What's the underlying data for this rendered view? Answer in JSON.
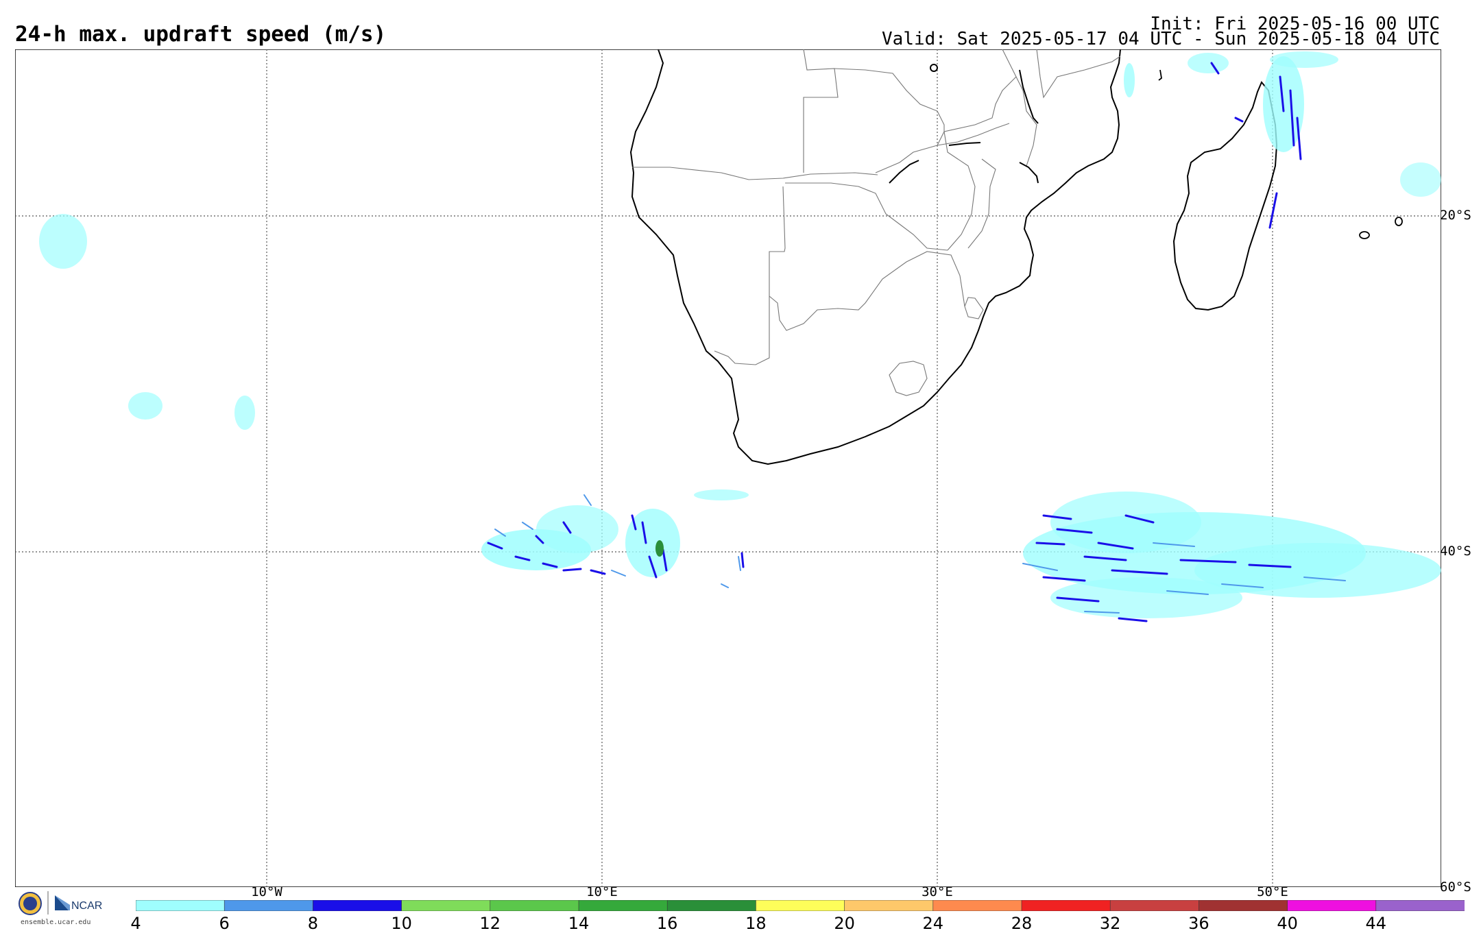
{
  "header": {
    "title": "24-h max. updraft speed (m/s)",
    "init": "Init: Fri 2025-05-16 00 UTC",
    "valid": "Valid: Sat 2025-05-17 04 UTC - Sun 2025-05-18 04 UTC"
  },
  "map": {
    "lon_labels": [
      "10°W",
      "10°E",
      "30°E",
      "50°E"
    ],
    "lat_labels": [
      "20°S",
      "40°S",
      "60°S"
    ],
    "gridlines": "dotted"
  },
  "colorbar": {
    "ticks": [
      "4",
      "6",
      "8",
      "10",
      "12",
      "14",
      "16",
      "18",
      "20",
      "24",
      "28",
      "32",
      "36",
      "40",
      "44"
    ],
    "colors": [
      "#9ffefe",
      "#4e98ea",
      "#1a0fe8",
      "#7fdc5a",
      "#5bc74b",
      "#35a93b",
      "#2a8f39",
      "#fefe5a",
      "#fec86a",
      "#fe8a4e",
      "#f02222",
      "#c84040",
      "#a03232",
      "#ee10e0",
      "#9a62cc"
    ]
  },
  "footer": {
    "logo_text": "NCAR",
    "url": "ensemble.ucar.edu"
  }
}
